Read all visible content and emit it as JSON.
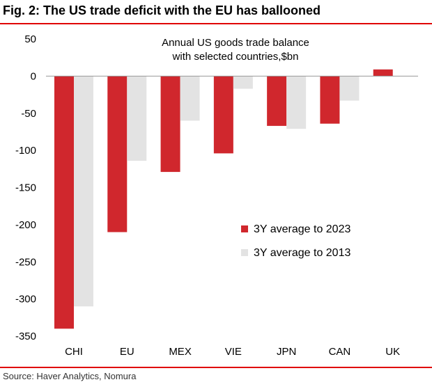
{
  "figure": {
    "title": "Fig. 2: The US trade deficit with the EU has ballooned",
    "source": "Source: Haver Analytics, Nomura",
    "rule_color": "#e00000"
  },
  "chart_data": {
    "type": "bar",
    "title": "Annual US goods trade balance with selected countries,$bn",
    "subtitle_lines": [
      "Annual US goods trade balance",
      "with selected countries,$bn"
    ],
    "xlabel": "",
    "ylabel": "",
    "categories": [
      "CHI",
      "EU",
      "MEX",
      "VIE",
      "JPN",
      "CAN",
      "UK"
    ],
    "series": [
      {
        "name": "3Y average to 2023",
        "color": "#d0272d",
        "values": [
          -340,
          -210,
          -129,
          -104,
          -67,
          -64,
          9
        ]
      },
      {
        "name": "3Y average to 2013",
        "color": "#e3e3e3",
        "values": [
          -310,
          -114,
          -60,
          -17,
          -71,
          -33,
          null
        ]
      }
    ],
    "ylim": [
      -350,
      50
    ],
    "yticks": [
      50,
      0,
      -50,
      -100,
      -150,
      -200,
      -250,
      -300,
      -350
    ],
    "grid": false,
    "legend_position": "center-right"
  }
}
